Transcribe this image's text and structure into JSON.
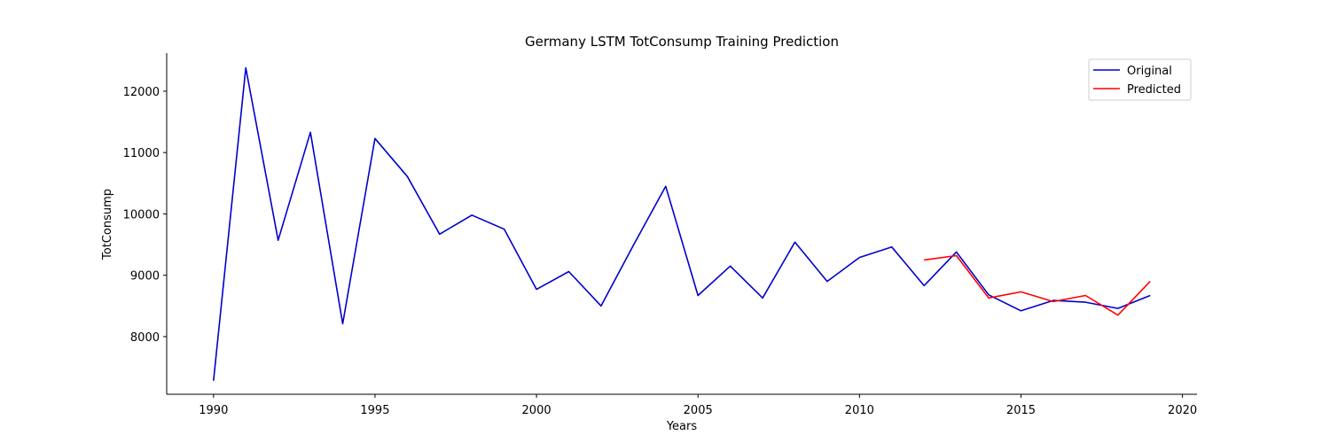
{
  "chart_data": {
    "type": "line",
    "title": "Germany LSTM TotConsump Training Prediction",
    "xlabel": "Years",
    "ylabel": "TotConsump",
    "xlim": [
      1988.55,
      2020.45
    ],
    "ylim": [
      7060,
      12620
    ],
    "x_ticks": [
      1990,
      1995,
      2000,
      2005,
      2010,
      2015,
      2020
    ],
    "y_ticks": [
      8000,
      9000,
      10000,
      11000,
      12000
    ],
    "grid": false,
    "legend_position": "top-right",
    "series": [
      {
        "name": "Original",
        "color": "#0000cd",
        "x": [
          1990,
          1991,
          1992,
          1993,
          1994,
          1995,
          1996,
          1997,
          1998,
          1999,
          2000,
          2001,
          2002,
          2003,
          2004,
          2005,
          2006,
          2007,
          2008,
          2009,
          2010,
          2011,
          2012,
          2013,
          2014,
          2015,
          2016,
          2017,
          2018,
          2019
        ],
        "y": [
          7280,
          12380,
          9570,
          11330,
          8210,
          11230,
          10610,
          9670,
          9980,
          9750,
          8770,
          9060,
          8500,
          9490,
          10450,
          8670,
          9150,
          8630,
          9540,
          8900,
          9290,
          9460,
          8830,
          9380,
          8680,
          8420,
          8590,
          8560,
          8460,
          8670
        ]
      },
      {
        "name": "Predicted",
        "color": "#ff0000",
        "x": [
          2012,
          2013,
          2014,
          2015,
          2016,
          2017,
          2018,
          2019
        ],
        "y": [
          9250,
          9320,
          8630,
          8730,
          8570,
          8670,
          8350,
          8900
        ]
      }
    ]
  }
}
